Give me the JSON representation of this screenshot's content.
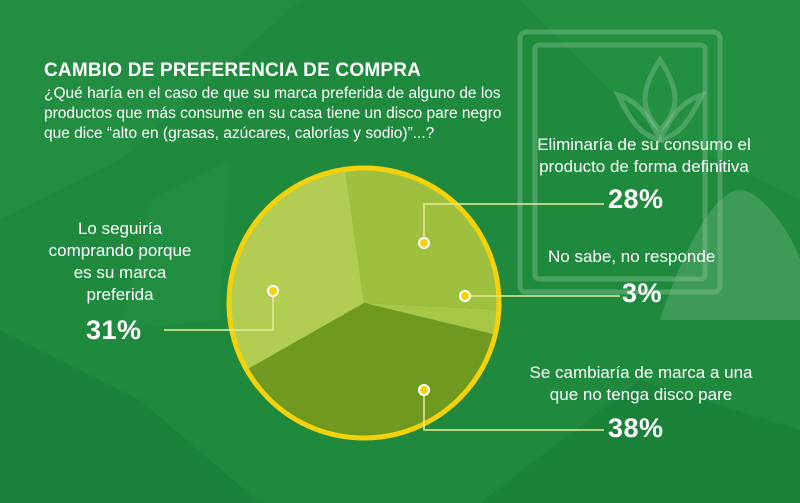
{
  "header": {
    "title": "CAMBIO DE PREFERENCIA DE COMPRA",
    "question": "¿Qué haría en el caso de que su marca preferida de alguno de los productos que más consume en su casa tiene un disco pare negro que dice “alto en (grasas, azúcares, calorías y sodio)”...?"
  },
  "chart_data": {
    "type": "pie",
    "title": "CAMBIO DE PREFERENCIA DE COMPRA",
    "slices": [
      {
        "label": "Eliminaría de su consumo el producto de forma definitiva",
        "value": 28,
        "display": "28%",
        "color": "#9fbf3e"
      },
      {
        "label": "No sabe, no responde",
        "value": 3,
        "display": "3%",
        "color": "#a8c746"
      },
      {
        "label": "Se cambiaría de marca a una que no tenga disco pare",
        "value": 38,
        "display": "38%",
        "color": "#6f9a1f"
      },
      {
        "label": "Lo seguiría comprando porque es su marca preferida",
        "value": 31,
        "display": "31%",
        "color": "#b3cd52"
      }
    ],
    "colors": {
      "ring": "#f3d20c",
      "marker": "#f3d20c"
    }
  }
}
